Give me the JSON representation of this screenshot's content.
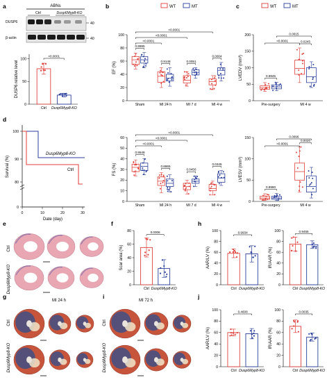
{
  "panels": {
    "a": {
      "label": "a",
      "header": "ABNs",
      "groups": [
        "Ctrl",
        "Dusp6Myp8-KO"
      ],
      "blots": [
        "DUSP6",
        "β-actin"
      ],
      "mw": [
        "40",
        "40"
      ],
      "bar": {
        "ylabel": "DUSP6 relative level",
        "yticks": [
          "0",
          "50",
          "100"
        ],
        "ylim": [
          0,
          110
        ],
        "categories": [
          "Ctrl",
          "Dusp6Myp8-KO"
        ],
        "values": [
          78,
          20
        ],
        "pvalue": "<0.0001"
      }
    },
    "b": {
      "label": "b"
    },
    "c": {
      "label": "c"
    },
    "d": {
      "label": "d",
      "ylabel": "Survival (%)",
      "xlabel": "Date (day)",
      "yticks": [
        "0",
        "80",
        "90",
        "100"
      ],
      "xticks": [
        "0",
        "10",
        "20",
        "30"
      ],
      "curves": [
        "Dusp6Myp8-KO",
        "Ctrl"
      ]
    },
    "e": {
      "label": "e",
      "rows": [
        "Ctrl",
        "Dusp6Myp8-KO"
      ]
    },
    "f": {
      "label": "f"
    },
    "g": {
      "label": "g",
      "title": "MI 24 h",
      "rows": [
        "Ctrl",
        "Dusp6Myp8-KO"
      ]
    },
    "h": {
      "label": "h"
    },
    "i": {
      "label": "i",
      "title": "MI 72 h",
      "rows": [
        "Ctrl",
        "Dusp6Myp8-KO"
      ]
    },
    "j": {
      "label": "j"
    }
  },
  "legend": {
    "wt": "WT",
    "mt": "MT"
  },
  "colors": {
    "wt": "#e0403a",
    "mt": "#2b3f9c",
    "dot": "#e0403a",
    "heart_pink": "#e8a7b3",
    "heart_purple": "#7d6aa8",
    "tissue_red": "#c7553c",
    "tissue_blue": "#2e4f8f"
  },
  "chart_data": [
    {
      "id": "b-EF",
      "type": "box",
      "ylabel": "EF (%)",
      "ylim": [
        0,
        100
      ],
      "yticks": [
        "0",
        "20",
        "40",
        "60",
        "80",
        "100"
      ],
      "categories": [
        "Sham",
        "MI 24 h",
        "MI 7 d",
        "MI 4 w"
      ],
      "series": [
        {
          "name": "WT",
          "medians": [
            62,
            37,
            31,
            29
          ],
          "q1": [
            55,
            28,
            27,
            24
          ],
          "q3": [
            67,
            44,
            38,
            33
          ],
          "min": [
            48,
            20,
            22,
            17
          ],
          "max": [
            72,
            50,
            44,
            38
          ]
        },
        {
          "name": "MT",
          "medians": [
            62,
            34,
            43,
            46
          ],
          "q1": [
            57,
            30,
            39,
            39
          ],
          "q3": [
            67,
            40,
            47,
            50
          ],
          "min": [
            50,
            22,
            34,
            30
          ],
          "max": [
            73,
            50,
            50,
            58
          ]
        }
      ],
      "pvalues": [
        "0.9995",
        "0.9148",
        "0.0051",
        "0.0004",
        "<0.0001",
        "<0.0001",
        "<0.0001"
      ]
    },
    {
      "id": "b-FS",
      "type": "box",
      "ylabel": "FS (%)",
      "ylim": [
        0,
        60
      ],
      "yticks": [
        "0",
        "10",
        "20",
        "30",
        "40",
        "50",
        "60"
      ],
      "categories": [
        "Sham",
        "MI 24 h",
        "MI 7 d",
        "MI 4 w"
      ],
      "series": [
        {
          "name": "WT",
          "medians": [
            32,
            19,
            14,
            12
          ],
          "q1": [
            28,
            15,
            11,
            10
          ],
          "q3": [
            35,
            23,
            17,
            16
          ],
          "min": [
            24,
            8,
            7,
            6
          ],
          "max": [
            39,
            27,
            20,
            19
          ]
        },
        {
          "name": "MT",
          "medians": [
            33,
            17,
            19,
            22
          ],
          "q1": [
            29,
            14,
            17,
            18
          ],
          "q3": [
            36,
            21,
            21,
            26
          ],
          "min": [
            25,
            9,
            14,
            15
          ],
          "max": [
            40,
            25,
            24,
            29
          ]
        }
      ],
      "pvalues": [
        "0.9548",
        "0.8865",
        "0.0456",
        "0.0345",
        "<0.0001",
        "<0.0001",
        "<0.0001"
      ]
    },
    {
      "id": "c-LVEDV",
      "type": "box",
      "ylabel": "LVEDV (mm³)",
      "ylim": [
        0,
        200
      ],
      "yticks": [
        "0",
        "50",
        "100",
        "150",
        "200"
      ],
      "categories": [
        "Pre-surgery",
        "MI 4 w"
      ],
      "series": [
        {
          "name": "WT",
          "medians": [
            40,
            98
          ],
          "q1": [
            35,
            80
          ],
          "q3": [
            45,
            123
          ],
          "min": [
            28,
            55
          ],
          "max": [
            55,
            160
          ]
        },
        {
          "name": "MT",
          "medians": [
            42,
            73
          ],
          "q1": [
            36,
            55
          ],
          "q3": [
            48,
            100
          ],
          "min": [
            30,
            40
          ],
          "max": [
            56,
            118
          ]
        }
      ],
      "pvalues": [
        "0.9845",
        "0.0245",
        "<0.0001",
        "0.0015"
      ]
    },
    {
      "id": "c-LVESV",
      "type": "box",
      "ylabel": "LVESV (mm³)",
      "ylim": [
        0,
        150
      ],
      "yticks": [
        "0",
        "50",
        "100",
        "150"
      ],
      "categories": [
        "Pre-surgery",
        "MI 4 w"
      ],
      "series": [
        {
          "name": "WT",
          "medians": [
            8,
            70
          ],
          "q1": [
            5,
            50
          ],
          "q3": [
            12,
            90
          ],
          "min": [
            2,
            22
          ],
          "max": [
            18,
            128
          ]
        },
        {
          "name": "MT",
          "medians": [
            8,
            35
          ],
          "q1": [
            5,
            22
          ],
          "q3": [
            12,
            60
          ],
          "min": [
            2,
            8
          ],
          "max": [
            19,
            80
          ]
        }
      ],
      "pvalues": [
        "0.9990",
        "0.0020",
        "<0.0001",
        "0.0096"
      ]
    },
    {
      "id": "f",
      "type": "bar",
      "ylabel": "Scar area (%)",
      "ylim": [
        0,
        80
      ],
      "yticks": [
        "0",
        "20",
        "40",
        "60",
        "80"
      ],
      "categories": [
        "Ctrl",
        "Dusp6Myp8-KO"
      ],
      "values": [
        55,
        24
      ],
      "errors": [
        14,
        13
      ],
      "pvalue": "0.0006"
    },
    {
      "id": "h1",
      "type": "bar",
      "ylabel": "AAR/LV (%)",
      "ylim": [
        0,
        100
      ],
      "yticks": [
        "0",
        "20",
        "40",
        "60",
        "80",
        "100"
      ],
      "categories": [
        "Ctrl",
        "Dusp6Myp8-KO"
      ],
      "values": [
        58,
        57
      ],
      "errors": [
        8,
        15
      ],
      "pvalue": "0.9934"
    },
    {
      "id": "h2",
      "type": "bar",
      "ylabel": "IR/AAR (%)",
      "ylim": [
        0,
        100
      ],
      "yticks": [
        "0",
        "20",
        "40",
        "60",
        "80",
        "100"
      ],
      "categories": [
        "Ctrl",
        "Dusp6Myp8-KO"
      ],
      "values": [
        75,
        74
      ],
      "errors": [
        13,
        7
      ],
      "pvalue": "0.9455"
    },
    {
      "id": "j1",
      "type": "bar",
      "ylabel": "AAR/LV (%)",
      "ylim": [
        0,
        100
      ],
      "yticks": [
        "0",
        "20",
        "40",
        "60",
        "80",
        "100"
      ],
      "categories": [
        "Ctrl",
        "Dusp6Myp8-KO"
      ],
      "values": [
        60,
        58
      ],
      "errors": [
        6,
        9
      ],
      "pvalue": "0.4608"
    },
    {
      "id": "j2",
      "type": "bar",
      "ylabel": "IR/AAR (%)",
      "ylim": [
        0,
        100
      ],
      "yticks": [
        "0",
        "20",
        "40",
        "60",
        "80",
        "100"
      ],
      "categories": [
        "Ctrl",
        "Dusp6Myp8-KO"
      ],
      "values": [
        71,
        52
      ],
      "errors": [
        11,
        7
      ],
      "pvalue": "0.0035"
    }
  ]
}
